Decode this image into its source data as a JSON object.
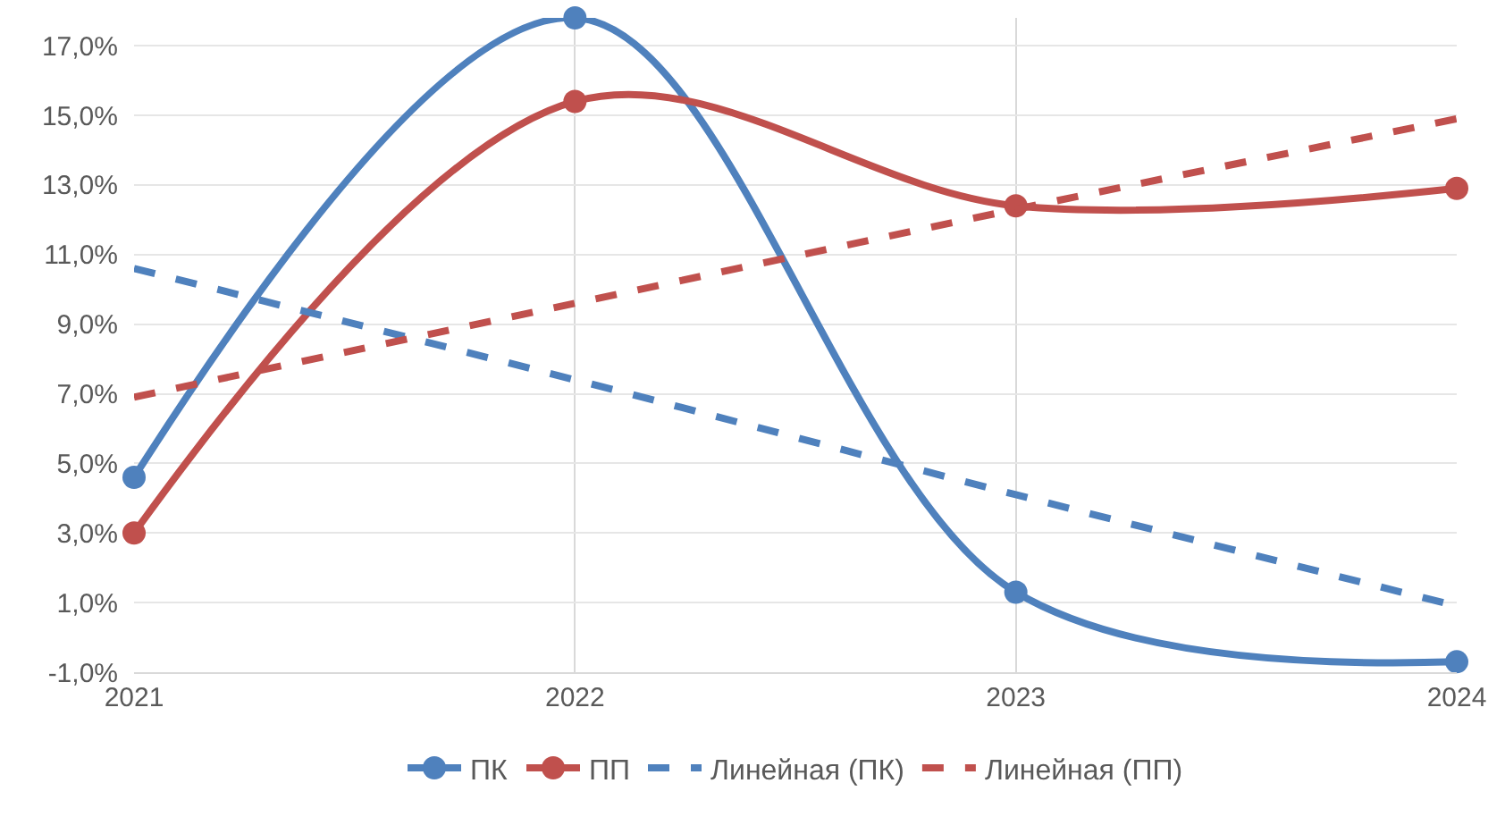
{
  "chart_data": {
    "type": "line",
    "x": [
      2021,
      2022,
      2023,
      2024
    ],
    "series": [
      {
        "name": "ПК",
        "color": "#4f81bd",
        "values": [
          4.6,
          17.8,
          1.3,
          -0.7
        ],
        "marker": "circle",
        "line_style": "solid"
      },
      {
        "name": "ПП",
        "color": "#c0504d",
        "values": [
          3.0,
          15.4,
          12.4,
          12.9
        ],
        "marker": "circle",
        "line_style": "solid"
      },
      {
        "name": "Линейная (ПК)",
        "color": "#4f81bd",
        "values": [
          10.6,
          7.4,
          4.1,
          0.9
        ],
        "marker": "none",
        "line_style": "dashed"
      },
      {
        "name": "Линейная (ПП)",
        "color": "#c0504d",
        "values": [
          6.9,
          9.6,
          12.3,
          14.9
        ],
        "marker": "none",
        "line_style": "dashed"
      }
    ],
    "xlim": [
      2021,
      2024
    ],
    "xticks": [
      2021,
      2022,
      2023,
      2024
    ],
    "ylim": [
      -1,
      17.8
    ],
    "yticks": [
      {
        "value": -1,
        "label": "-1,0%"
      },
      {
        "value": 1,
        "label": "1,0%"
      },
      {
        "value": 3,
        "label": "3,0%"
      },
      {
        "value": 5,
        "label": "5,0%"
      },
      {
        "value": 7,
        "label": "7,0%"
      },
      {
        "value": 9,
        "label": "9,0%"
      },
      {
        "value": 11,
        "label": "11,0%"
      },
      {
        "value": 13,
        "label": "13,0%"
      },
      {
        "value": 15,
        "label": "15,0%"
      },
      {
        "value": 17,
        "label": "17,0%"
      }
    ],
    "grid": true,
    "legend": "bottom"
  }
}
